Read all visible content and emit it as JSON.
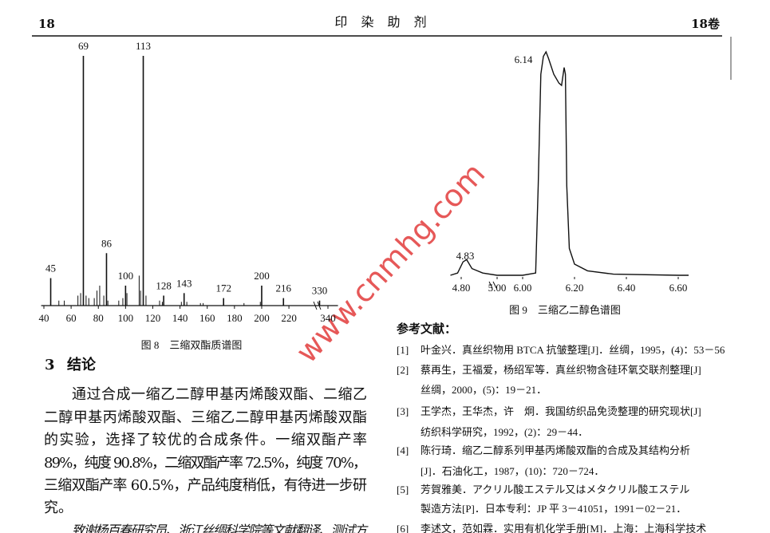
{
  "header": {
    "page": "18",
    "journal": "印 染 助 剂",
    "volume": "18卷"
  },
  "chart_data": [
    {
      "type": "bar",
      "caption": "图 8　三缩双酯质谱图",
      "x": [
        45,
        69,
        86,
        100,
        113,
        128,
        143,
        172,
        200,
        216,
        330
      ],
      "values": [
        11,
        100,
        21,
        8,
        100,
        4,
        5,
        3,
        8,
        3,
        2
      ],
      "minor_x": [
        51,
        55,
        65,
        67,
        71,
        73,
        77,
        79,
        81,
        84,
        87,
        95,
        98,
        101,
        110,
        111,
        115,
        125,
        127,
        141,
        145,
        155,
        157,
        187,
        199
      ],
      "minor_values": [
        2,
        2,
        4,
        5,
        4,
        3,
        3,
        6,
        8,
        4,
        2,
        2,
        3,
        5,
        12,
        6,
        4,
        2,
        1.5,
        1.5,
        1.5,
        1,
        1,
        1,
        1.5
      ],
      "xlim": [
        38,
        352
      ],
      "xticks": [
        40,
        60,
        80,
        100,
        120,
        140,
        160,
        180,
        200,
        220,
        340
      ],
      "color": "#111111"
    },
    {
      "type": "line",
      "caption": "图 9　三缩乙二醇色谱图",
      "x": [
        4.74,
        4.78,
        4.81,
        4.83,
        4.86,
        4.92,
        5.0,
        6.0,
        6.05,
        6.06,
        6.07,
        6.08,
        6.09,
        6.1,
        6.12,
        6.14,
        6.15,
        6.16,
        6.165,
        6.17,
        6.18,
        6.2,
        6.25,
        6.35,
        6.6,
        6.64
      ],
      "values": [
        0,
        1,
        6,
        7,
        3,
        1,
        0,
        0,
        1,
        40,
        90,
        98,
        100,
        97,
        90,
        86,
        85,
        93,
        90,
        40,
        12,
        5,
        2,
        0.5,
        0,
        0
      ],
      "peaks": [
        4.83,
        6.14
      ],
      "xlim": [
        4.74,
        6.64
      ],
      "xticks": [
        {
          "value": 4.8,
          "label": "4.80"
        },
        {
          "value": 5.0,
          "label": "5.00"
        },
        {
          "value": 6.0,
          "label": "6.00"
        },
        {
          "value": 6.2,
          "label": "6.20"
        },
        {
          "value": 6.4,
          "label": "6.40"
        },
        {
          "value": 6.6,
          "label": "6.60"
        }
      ],
      "color": "#111111"
    }
  ],
  "watermark": "www.cnmhg.com",
  "section": {
    "number": "3",
    "title": "结论",
    "lines": [
      "通过合成一缩乙二醇甲基丙烯酸双酯、二缩乙",
      "二醇甲基丙烯酸双酯、三缩乙二醇甲基丙烯酸双酯",
      "的实验，选择了较优的合成条件。一缩双酯产率",
      "89%，纯度 90.8%，二缩双酯产率 72.5%，纯度 70%，",
      "三缩双酯产率 60.5%，产品纯度稍低，有待进一步研",
      "究。"
    ],
    "acknowledgement": "致谢杨百春研究员、浙江丝绸科学院等文献翻译、测试方"
  },
  "references": {
    "heading": "参考文献：",
    "items": [
      {
        "number": "[1]",
        "lines": [
          "叶金兴．真丝织物用 BTCA 抗皱整理[J]．丝绸，1995，(4)：53－56"
        ]
      },
      {
        "number": "[2]",
        "lines": [
          "蔡再生，王福爱，杨绍军等．真丝织物含硅环氧交联剂整理[J]",
          "丝绸，2000，(5)：19－21．"
        ]
      },
      {
        "number": "[3]",
        "lines": [
          "王学杰，王华杰，许　炯．我国纺织品免烫整理的研究现状[J]",
          "纺织科学研究，1992，(2)：29－44．"
        ]
      },
      {
        "number": "[4]",
        "lines": [
          "陈行琦．缩乙二醇系列甲基丙烯酸双酯的合成及其结构分析",
          "[J]．石油化工，1987，(10)：720－724．"
        ]
      },
      {
        "number": "[5]",
        "lines": [
          "芳賀雅美．アクリル酸エステル又はメタクリル酸エステル",
          "製造方法[P]．日本专利：JP 平 3－41051，1991－02－21．"
        ]
      },
      {
        "number": "[6]",
        "lines": [
          "李述文，范如霖．实用有机化学手册[M]．上海：上海科学技术"
        ]
      }
    ]
  }
}
